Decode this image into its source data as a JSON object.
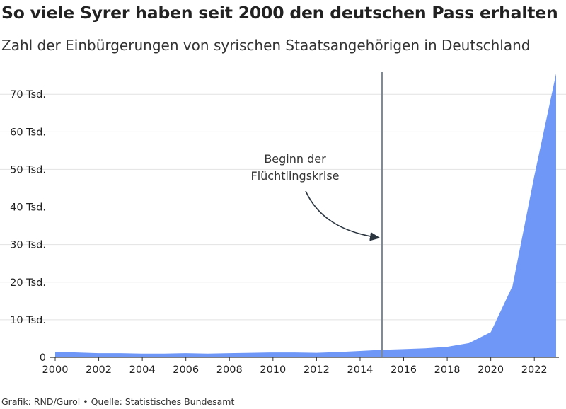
{
  "header": {
    "title": "So viele Syrer haben seit 2000 den deutschen Pass erhalten",
    "subtitle": "Zahl der Einbürgerungen von syrischen Staatsangehörigen in Deutschland"
  },
  "footer": {
    "credit": "Grafik: RND/Gurol • Quelle: Statistisches Bundesamt"
  },
  "colors": {
    "area": "#6f97f7",
    "marker_line": "#7f8a93",
    "grid": "#e2e2e2",
    "axis": "#333333"
  },
  "chart_data": {
    "type": "area",
    "x": [
      2000,
      2001,
      2002,
      2003,
      2004,
      2005,
      2006,
      2007,
      2008,
      2009,
      2010,
      2011,
      2012,
      2013,
      2014,
      2015,
      2016,
      2017,
      2018,
      2019,
      2020,
      2021,
      2022,
      2023
    ],
    "values": [
      1500,
      1300,
      1100,
      1100,
      1000,
      1000,
      1100,
      1000,
      1100,
      1200,
      1300,
      1300,
      1200,
      1400,
      1700,
      2000,
      2200,
      2400,
      2800,
      3800,
      6700,
      19000,
      48300,
      75500
    ],
    "xlim": [
      2000,
      2023
    ],
    "ylim": [
      0,
      75500
    ],
    "x_ticks": [
      {
        "value": 2000,
        "label": "2000"
      },
      {
        "value": 2002,
        "label": "2002"
      },
      {
        "value": 2004,
        "label": "2004"
      },
      {
        "value": 2006,
        "label": "2006"
      },
      {
        "value": 2008,
        "label": "2008"
      },
      {
        "value": 2010,
        "label": "2010"
      },
      {
        "value": 2012,
        "label": "2012"
      },
      {
        "value": 2014,
        "label": "2014"
      },
      {
        "value": 2016,
        "label": "2016"
      },
      {
        "value": 2018,
        "label": "2018"
      },
      {
        "value": 2020,
        "label": "2020"
      },
      {
        "value": 2022,
        "label": "2022"
      }
    ],
    "y_ticks": [
      {
        "value": 0,
        "label": "0"
      },
      {
        "value": 10000,
        "label": "10 Tsd."
      },
      {
        "value": 20000,
        "label": "20 Tsd."
      },
      {
        "value": 30000,
        "label": "30 Tsd."
      },
      {
        "value": 40000,
        "label": "40 Tsd."
      },
      {
        "value": 50000,
        "label": "50 Tsd."
      },
      {
        "value": 60000,
        "label": "60 Tsd."
      },
      {
        "value": 70000,
        "label": "70 Tsd."
      }
    ],
    "grid": true,
    "legend": "none",
    "annotation": {
      "x": 2015,
      "line1": "Beginn der",
      "line2": "Flüchtlingskrise"
    }
  }
}
